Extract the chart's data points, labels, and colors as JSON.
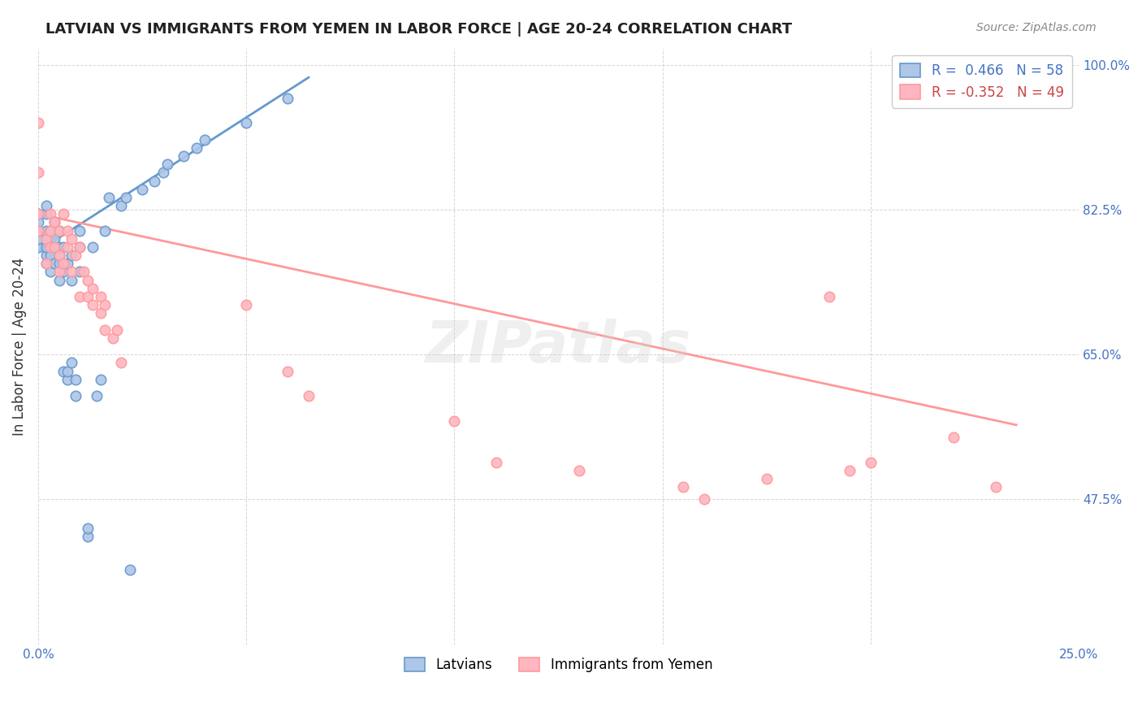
{
  "title": "LATVIAN VS IMMIGRANTS FROM YEMEN IN LABOR FORCE | AGE 20-24 CORRELATION CHART",
  "source": "Source: ZipAtlas.com",
  "ylabel": "In Labor Force | Age 20-24",
  "xlabel": "",
  "xlim": [
    0.0,
    0.25
  ],
  "ylim": [
    0.3,
    1.02
  ],
  "xticks": [
    0.0,
    0.05,
    0.1,
    0.15,
    0.2,
    0.25
  ],
  "xticklabels": [
    "0.0%",
    "",
    "",
    "",
    "",
    "25.0%"
  ],
  "yticks": [
    0.475,
    0.65,
    0.825,
    1.0
  ],
  "yticklabels": [
    "47.5%",
    "65.0%",
    "82.5%",
    "100.0%"
  ],
  "latvian_R": 0.466,
  "latvian_N": 58,
  "yemen_R": -0.352,
  "yemen_N": 49,
  "legend_labels": [
    "Latvians",
    "Immigrants from Yemen"
  ],
  "latvian_color": "#6699CC",
  "latvian_fill": "#AEC6E8",
  "yemen_color": "#FF9999",
  "yemen_fill": "#FFB6C1",
  "watermark": "ZIPatlas",
  "background_color": "#ffffff",
  "latvian_points_x": [
    0.0,
    0.0,
    0.0,
    0.0,
    0.0,
    0.002,
    0.002,
    0.002,
    0.002,
    0.002,
    0.002,
    0.003,
    0.003,
    0.003,
    0.003,
    0.004,
    0.004,
    0.004,
    0.004,
    0.005,
    0.005,
    0.005,
    0.005,
    0.005,
    0.006,
    0.006,
    0.006,
    0.006,
    0.007,
    0.007,
    0.007,
    0.008,
    0.008,
    0.008,
    0.009,
    0.009,
    0.01,
    0.01,
    0.01,
    0.012,
    0.012,
    0.013,
    0.014,
    0.015,
    0.016,
    0.017,
    0.02,
    0.021,
    0.022,
    0.025,
    0.028,
    0.03,
    0.031,
    0.035,
    0.038,
    0.04,
    0.05,
    0.06
  ],
  "latvian_points_y": [
    0.78,
    0.79,
    0.8,
    0.81,
    0.82,
    0.76,
    0.77,
    0.78,
    0.8,
    0.82,
    0.83,
    0.75,
    0.77,
    0.79,
    0.8,
    0.76,
    0.78,
    0.79,
    0.81,
    0.74,
    0.76,
    0.77,
    0.78,
    0.8,
    0.63,
    0.75,
    0.76,
    0.78,
    0.62,
    0.63,
    0.76,
    0.64,
    0.74,
    0.77,
    0.6,
    0.62,
    0.75,
    0.78,
    0.8,
    0.43,
    0.44,
    0.78,
    0.6,
    0.62,
    0.8,
    0.84,
    0.83,
    0.84,
    0.39,
    0.85,
    0.86,
    0.87,
    0.88,
    0.89,
    0.9,
    0.91,
    0.93,
    0.96
  ],
  "yemen_points_x": [
    0.0,
    0.0,
    0.0,
    0.0,
    0.002,
    0.002,
    0.003,
    0.003,
    0.003,
    0.004,
    0.004,
    0.005,
    0.005,
    0.005,
    0.006,
    0.006,
    0.007,
    0.007,
    0.008,
    0.008,
    0.009,
    0.01,
    0.01,
    0.011,
    0.012,
    0.012,
    0.013,
    0.013,
    0.015,
    0.015,
    0.016,
    0.016,
    0.018,
    0.019,
    0.02,
    0.05,
    0.06,
    0.065,
    0.1,
    0.11,
    0.13,
    0.155,
    0.16,
    0.175,
    0.19,
    0.195,
    0.2,
    0.22,
    0.23
  ],
  "yemen_points_y": [
    0.93,
    0.87,
    0.82,
    0.8,
    0.76,
    0.79,
    0.78,
    0.8,
    0.82,
    0.78,
    0.81,
    0.75,
    0.77,
    0.8,
    0.76,
    0.82,
    0.78,
    0.8,
    0.75,
    0.79,
    0.77,
    0.72,
    0.78,
    0.75,
    0.72,
    0.74,
    0.71,
    0.73,
    0.7,
    0.72,
    0.68,
    0.71,
    0.67,
    0.68,
    0.64,
    0.71,
    0.63,
    0.6,
    0.57,
    0.52,
    0.51,
    0.49,
    0.475,
    0.5,
    0.72,
    0.51,
    0.52,
    0.55,
    0.49
  ],
  "latvian_trendline_x": [
    0.0,
    0.065
  ],
  "latvian_trendline_y": [
    0.775,
    0.985
  ],
  "yemen_trendline_x": [
    0.0,
    0.235
  ],
  "yemen_trendline_y": [
    0.82,
    0.565
  ]
}
